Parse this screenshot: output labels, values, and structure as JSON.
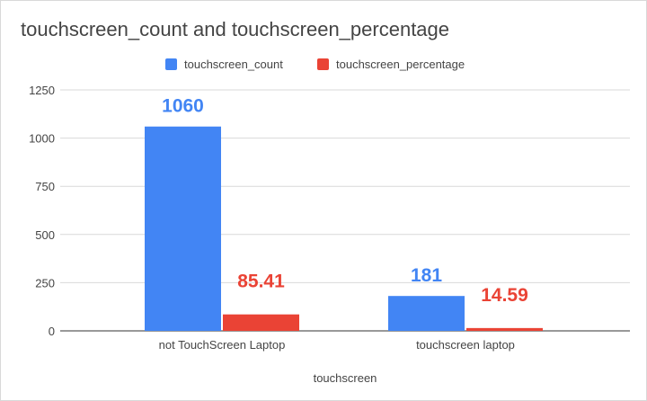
{
  "chart_data": {
    "type": "bar",
    "title": "touchscreen_count and touchscreen_percentage",
    "xlabel": "touchscreen",
    "ylabel": "",
    "categories": [
      "not TouchScreen Laptop",
      "touchscreen laptop"
    ],
    "series": [
      {
        "name": "touchscreen_count",
        "values": [
          1060,
          181
        ],
        "labels": [
          "1060",
          "181"
        ],
        "color": "#4285f4"
      },
      {
        "name": "touchscreen_percentage",
        "values": [
          85.41,
          14.59
        ],
        "labels": [
          "85.41",
          "14.59"
        ],
        "color": "#ea4335"
      }
    ],
    "ylim": [
      0,
      1250
    ],
    "yticks": [
      "0",
      "250",
      "500",
      "750",
      "1000",
      "1250"
    ],
    "grid": true,
    "legend_position": "top"
  }
}
